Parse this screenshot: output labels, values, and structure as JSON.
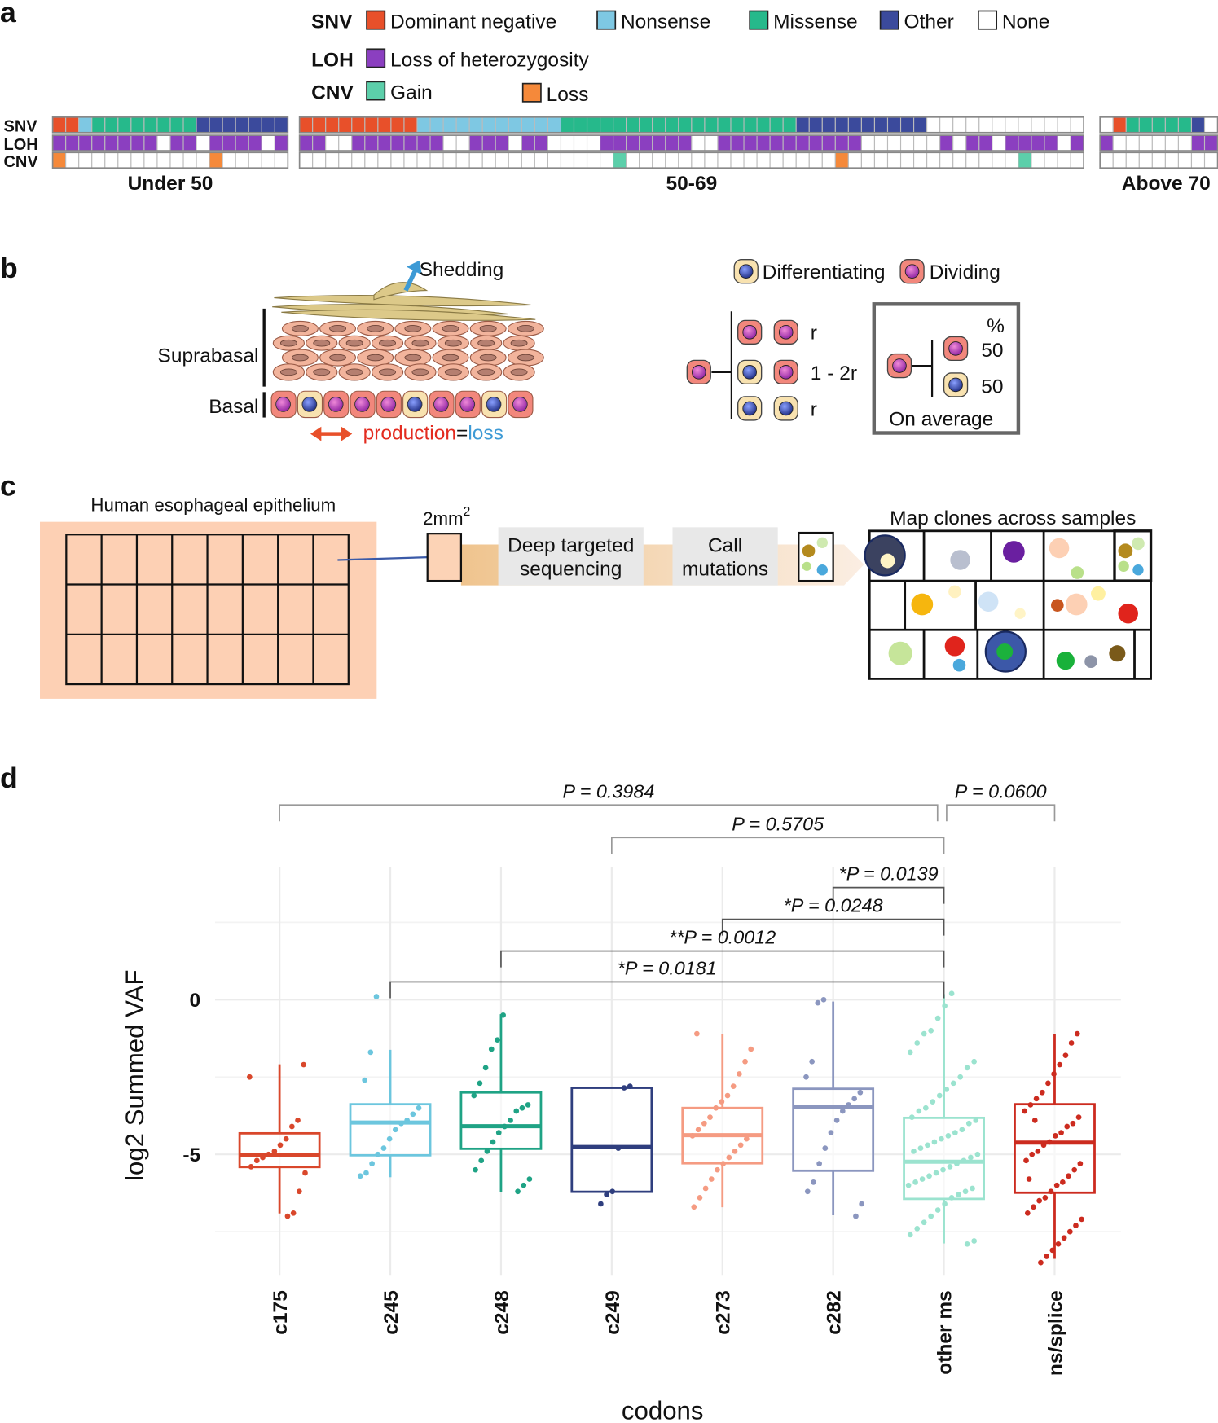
{
  "panel_a": {
    "label": "a",
    "tracks": [
      {
        "name": "SNV",
        "legend": [
          {
            "label": "Dominant negative",
            "color": "#e8502a"
          },
          {
            "label": "Nonsense",
            "color": "#7ec8e3"
          },
          {
            "label": "Missense",
            "color": "#26b98b"
          },
          {
            "label": "Other",
            "color": "#3b4a9c"
          },
          {
            "label": "None",
            "color": "#ffffff"
          }
        ]
      },
      {
        "name": "LOH",
        "legend": [
          {
            "label": "Loss of heterozygosity",
            "color": "#8b3fc0"
          }
        ]
      },
      {
        "name": "CNV",
        "legend": [
          {
            "label": "Gain",
            "color": "#5ccfaa"
          },
          {
            "label": "Loss",
            "color": "#f5893a"
          }
        ]
      }
    ],
    "groups": [
      {
        "label": "Under 50",
        "tracks": [
          [
            0,
            0,
            1,
            2,
            2,
            2,
            2,
            2,
            2,
            2,
            2,
            3,
            3,
            3,
            3,
            3,
            3,
            3
          ],
          [
            0,
            0,
            0,
            0,
            0,
            0,
            0,
            0,
            null,
            0,
            0,
            null,
            0,
            0,
            0,
            0,
            null,
            0
          ],
          [
            1,
            null,
            null,
            null,
            null,
            null,
            null,
            null,
            null,
            null,
            null,
            null,
            1,
            null,
            null,
            null,
            null,
            null
          ]
        ]
      },
      {
        "label": "50-69",
        "tracks": [
          [
            0,
            0,
            0,
            0,
            0,
            0,
            0,
            0,
            0,
            1,
            1,
            1,
            1,
            1,
            1,
            1,
            1,
            1,
            1,
            1,
            2,
            2,
            2,
            2,
            2,
            2,
            2,
            2,
            2,
            2,
            2,
            2,
            2,
            2,
            2,
            2,
            2,
            2,
            3,
            3,
            3,
            3,
            3,
            3,
            3,
            3,
            3,
            3,
            4,
            4,
            4,
            4,
            4,
            4,
            4,
            4,
            4,
            4,
            4,
            4
          ],
          [
            0,
            0,
            null,
            null,
            0,
            0,
            0,
            0,
            0,
            0,
            0,
            null,
            null,
            0,
            0,
            0,
            null,
            0,
            0,
            null,
            null,
            null,
            null,
            0,
            0,
            0,
            0,
            0,
            0,
            0,
            null,
            null,
            0,
            0,
            0,
            0,
            0,
            0,
            0,
            0,
            0,
            0,
            0,
            null,
            null,
            null,
            null,
            null,
            null,
            0,
            null,
            0,
            0,
            null,
            0,
            0,
            0,
            0,
            null,
            0
          ],
          [
            null,
            null,
            null,
            null,
            null,
            null,
            null,
            null,
            null,
            null,
            null,
            null,
            null,
            null,
            null,
            null,
            null,
            null,
            null,
            null,
            null,
            null,
            null,
            null,
            0,
            null,
            null,
            null,
            null,
            null,
            null,
            null,
            null,
            null,
            null,
            null,
            null,
            null,
            null,
            null,
            null,
            1,
            null,
            null,
            null,
            null,
            null,
            null,
            null,
            null,
            null,
            null,
            null,
            null,
            null,
            0,
            null,
            null,
            null,
            null
          ]
        ]
      },
      {
        "label": "Above 70",
        "tracks": [
          [
            4,
            0,
            2,
            2,
            2,
            2,
            2,
            3,
            4
          ],
          [
            0,
            null,
            null,
            null,
            null,
            null,
            null,
            0,
            0
          ],
          [
            null,
            null,
            null,
            null,
            null,
            null,
            null,
            null,
            null
          ]
        ]
      }
    ]
  },
  "panel_b": {
    "label": "b",
    "shedding": "Shedding",
    "suprabasal": "Suprabasal",
    "basal": "Basal",
    "production": "production",
    "equals": "=",
    "loss": "loss",
    "legend": [
      "Differentiating",
      "Dividing"
    ],
    "outcomes": [
      "r",
      "1 - 2r",
      "r"
    ],
    "percent": "%",
    "average_values": [
      50,
      50
    ],
    "average_label": "On average"
  },
  "panel_c": {
    "label": "c",
    "tissue": "Human esophageal epithelium",
    "sample_size": "2mm",
    "sample_exponent": "2",
    "step1": [
      "Deep targeted",
      "sequencing"
    ],
    "step2": [
      "Call",
      "mutations"
    ],
    "map_title": "Map clones across samples"
  },
  "panel_d": {
    "label": "d"
  },
  "chart_data": {
    "type": "box",
    "y_label": "log2 Summed VAF",
    "x_label": "codons",
    "categories": [
      "c175",
      "c245",
      "c248",
      "c249",
      "c273",
      "c282",
      "other ms",
      "ns/splice"
    ],
    "colors": [
      "#d9472b",
      "#6cc6de",
      "#1fa385",
      "#2f3e7e",
      "#f59b82",
      "#8b96bf",
      "#9be3cf",
      "#cc2b1f"
    ],
    "boxes": [
      {
        "whislo": -6.91,
        "q1": -5.41,
        "med": -5.03,
        "q3": -4.32,
        "whishi": -2.09
      },
      {
        "whislo": -5.74,
        "q1": -5.03,
        "med": -3.97,
        "q3": -3.38,
        "whishi": -1.62
      },
      {
        "whislo": -6.21,
        "q1": -4.82,
        "med": -4.09,
        "q3": -3.0,
        "whishi": -0.47
      },
      {
        "whislo": -6.21,
        "q1": -6.21,
        "med": -4.76,
        "q3": -2.85,
        "whishi": -2.85
      },
      {
        "whislo": -6.71,
        "q1": -5.29,
        "med": -4.38,
        "q3": -3.5,
        "whishi": -1.12
      },
      {
        "whislo": -6.97,
        "q1": -5.53,
        "med": -3.47,
        "q3": -2.88,
        "whishi": -0.06
      },
      {
        "whislo": -7.88,
        "q1": -6.44,
        "med": -5.24,
        "q3": -3.82,
        "whishi": 0.18
      },
      {
        "whislo": -8.38,
        "q1": -6.24,
        "med": -4.62,
        "q3": -3.38,
        "whishi": -1.12
      }
    ],
    "points": [
      [
        -2.5,
        -2.1,
        -3.9,
        -4.1,
        -4.5,
        -4.7,
        -4.9,
        -5.0,
        -5.1,
        -5.2,
        -5.4,
        -5.6,
        -6.2,
        -6.9,
        -7.0
      ],
      [
        0.1,
        -1.7,
        -2.6,
        -3.5,
        -3.7,
        -3.9,
        -4.0,
        -4.2,
        -4.5,
        -4.8,
        -5.0,
        -5.3,
        -5.6,
        -5.7
      ],
      [
        -0.5,
        -1.3,
        -1.6,
        -2.2,
        -2.7,
        -3.1,
        -3.4,
        -3.5,
        -3.6,
        -3.9,
        -4.1,
        -4.3,
        -4.6,
        -4.9,
        -5.2,
        -5.5,
        -5.8,
        -6.0,
        -6.2
      ],
      [
        -2.8,
        -2.85,
        -4.8,
        -6.2,
        -6.3,
        -6.6
      ],
      [
        -1.1,
        -1.6,
        -2.0,
        -2.4,
        -2.8,
        -3.1,
        -3.3,
        -3.5,
        -3.8,
        -4.0,
        -4.2,
        -4.4,
        -4.5,
        -4.7,
        -4.9,
        -5.1,
        -5.3,
        -5.5,
        -5.8,
        -6.1,
        -6.4,
        -6.7
      ],
      [
        0.0,
        -0.1,
        -2.0,
        -2.5,
        -3.0,
        -3.2,
        -3.4,
        -3.6,
        -3.9,
        -4.3,
        -4.8,
        -5.3,
        -5.9,
        -6.2,
        -6.6,
        -7.0
      ],
      [
        0.2,
        -0.2,
        -0.6,
        -1.0,
        -1.1,
        -1.4,
        -1.7,
        -2.0,
        -2.2,
        -2.5,
        -2.7,
        -2.9,
        -3.1,
        -3.3,
        -3.5,
        -3.6,
        -3.8,
        -3.9,
        -4.0,
        -4.2,
        -4.3,
        -4.4,
        -4.5,
        -4.6,
        -4.7,
        -4.8,
        -4.9,
        -5.0,
        -5.1,
        -5.2,
        -5.3,
        -5.4,
        -5.5,
        -5.6,
        -5.7,
        -5.8,
        -5.9,
        -6.0,
        -6.1,
        -6.2,
        -6.3,
        -6.4,
        -6.6,
        -6.8,
        -7.0,
        -7.2,
        -7.4,
        -7.6,
        -7.8,
        -7.9
      ],
      [
        -1.1,
        -1.4,
        -1.8,
        -2.1,
        -2.4,
        -2.7,
        -3.0,
        -3.2,
        -3.4,
        -3.6,
        -3.8,
        -4.0,
        -4.1,
        -4.3,
        -4.4,
        -4.6,
        -4.7,
        -4.9,
        -5.0,
        -5.2,
        -5.3,
        -5.5,
        -5.7,
        -5.9,
        -6.0,
        -6.2,
        -6.4,
        -6.5,
        -6.7,
        -6.9,
        -7.1,
        -7.3,
        -7.5,
        -7.7,
        -7.9,
        -8.1,
        -8.3,
        -8.5,
        -3.9,
        -5.8
      ]
    ],
    "ylim": [
      -8.9,
      4.3
    ],
    "yticks": [
      -5,
      0
    ],
    "minor_yticks": [
      -7.5,
      -2.5,
      2.5
    ],
    "grid": true,
    "comparisons": [
      {
        "from": 0,
        "to": 6,
        "label": "P = 0.3984",
        "color": "#777777"
      },
      {
        "from": 6,
        "to": 7,
        "label": "P = 0.0600",
        "color": "#777777"
      },
      {
        "from": 3,
        "to": 6,
        "label": "P = 0.5705",
        "color": "#777777"
      },
      {
        "from": 5,
        "to": 6,
        "label": "*P = 0.0139",
        "color": "#111111"
      },
      {
        "from": 4,
        "to": 6,
        "label": "*P = 0.0248",
        "color": "#111111"
      },
      {
        "from": 2,
        "to": 6,
        "label": "**P = 0.0012",
        "color": "#111111"
      },
      {
        "from": 1,
        "to": 6,
        "label": "*P = 0.0181",
        "color": "#111111"
      }
    ]
  }
}
